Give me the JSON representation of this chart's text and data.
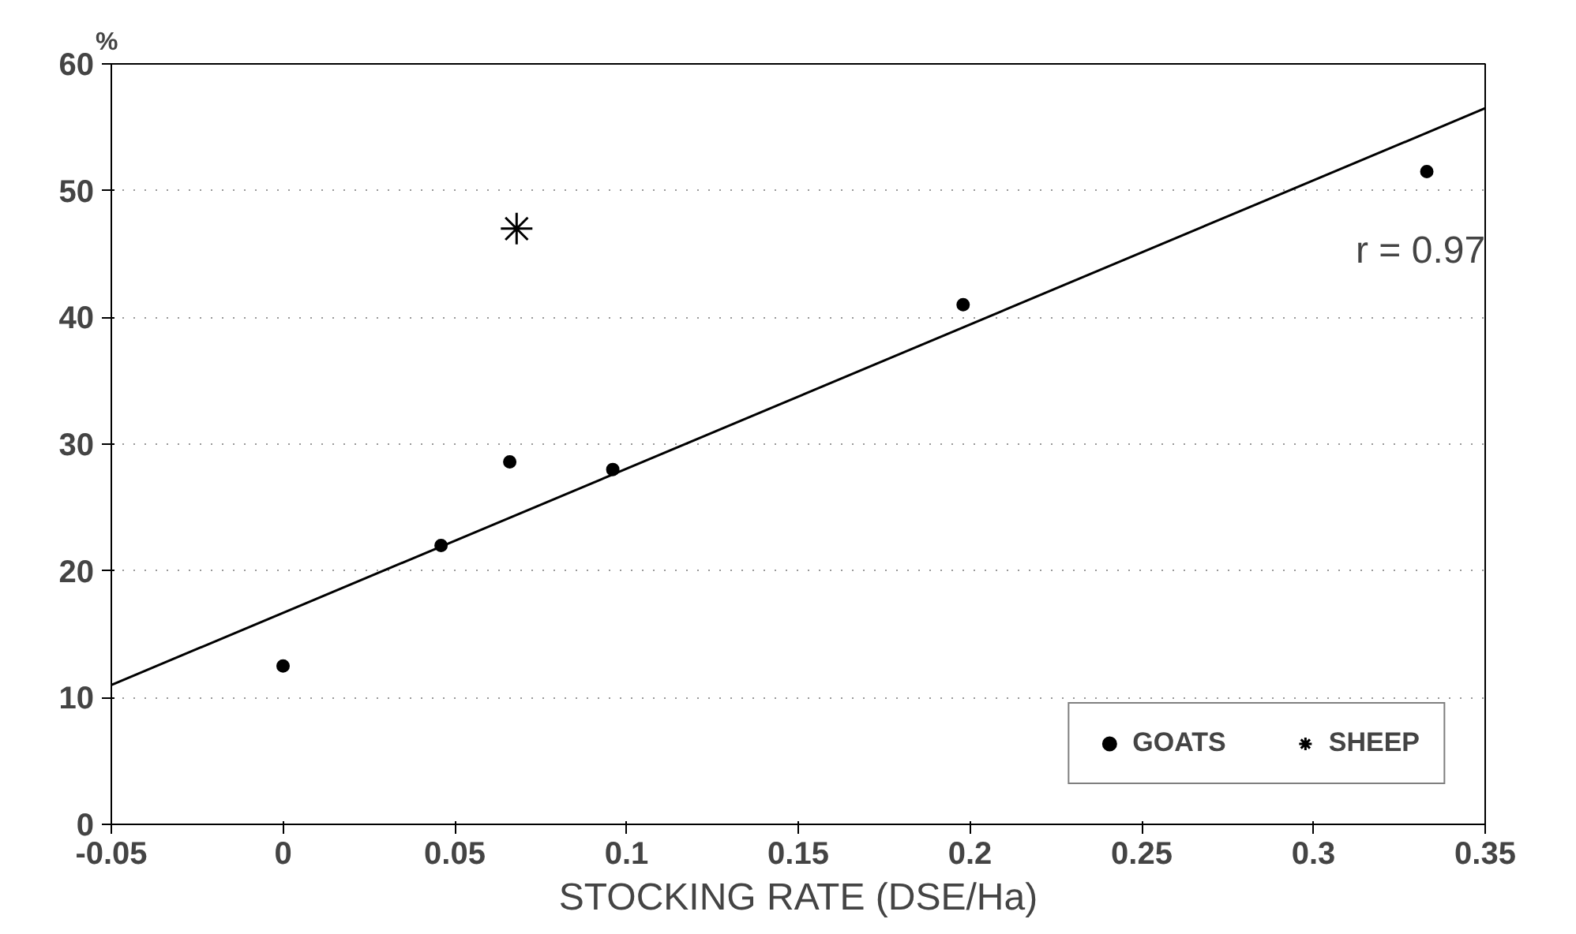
{
  "chart_data": {
    "type": "scatter",
    "xlabel": "STOCKING RATE (DSE/Ha)",
    "ylabel": "%",
    "xlim": [
      -0.05,
      0.35
    ],
    "xticks": [
      -0.05,
      0,
      0.05,
      0.1,
      0.15,
      0.2,
      0.25,
      0.3,
      0.35
    ],
    "ylim": [
      0,
      60
    ],
    "yticks": [
      0,
      10,
      20,
      30,
      40,
      50,
      60
    ],
    "grid": "y",
    "legend": "bottom right",
    "series": [
      {
        "name": "GOATS",
        "color": "#000000",
        "marker": "circle",
        "x": [
          0,
          0.046,
          0.066,
          0.096,
          0.198,
          0.333
        ],
        "values": [
          12.5,
          22,
          28.6,
          28,
          41,
          51.5
        ]
      },
      {
        "name": "SHEEP",
        "color": "#000000",
        "marker": "cross",
        "x": [
          0.068
        ],
        "values": [
          47
        ]
      },
      {
        "type": "line",
        "color": "#000000",
        "line_style": "solid",
        "marker": "none",
        "x": [
          -0.05,
          0.35
        ],
        "values": [
          11,
          56.5
        ]
      }
    ],
    "annotations": [
      "r = 0.97"
    ]
  }
}
